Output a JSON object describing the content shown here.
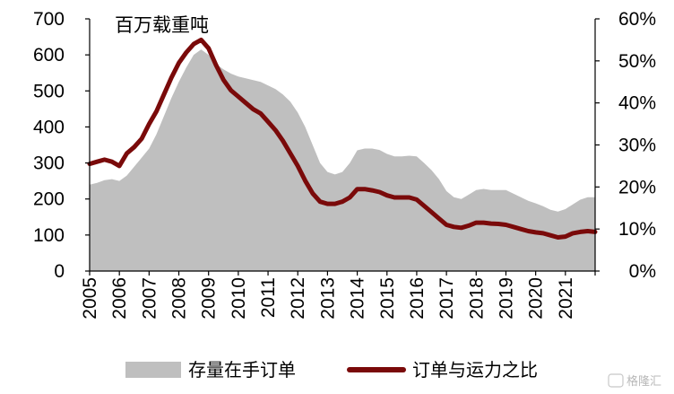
{
  "chart_data": {
    "type": "area",
    "unit_label": "百万载重吨",
    "x_labels": [
      "2005",
      "2006",
      "2007",
      "2008",
      "2009",
      "2010",
      "2011",
      "2012",
      "2013",
      "2014",
      "2015",
      "2016",
      "2017",
      "2018",
      "2019",
      "2020",
      "2021"
    ],
    "x_range": [
      2005.0,
      2022.0
    ],
    "y_left": {
      "range": [
        0,
        700
      ],
      "ticks": [
        "0",
        "100",
        "200",
        "300",
        "400",
        "500",
        "600",
        "700"
      ]
    },
    "y_right": {
      "range": [
        0,
        60
      ],
      "ticks": [
        "0%",
        "10%",
        "20%",
        "30%",
        "40%",
        "50%",
        "60%"
      ]
    },
    "series": [
      {
        "name": "存量在手订单",
        "kind": "area",
        "axis": "left",
        "color": "#bfbfbf",
        "points": [
          [
            2005.0,
            240
          ],
          [
            2005.25,
            245
          ],
          [
            2005.5,
            252
          ],
          [
            2005.75,
            255
          ],
          [
            2006.0,
            250
          ],
          [
            2006.25,
            265
          ],
          [
            2006.5,
            290
          ],
          [
            2006.75,
            315
          ],
          [
            2007.0,
            340
          ],
          [
            2007.25,
            380
          ],
          [
            2007.5,
            430
          ],
          [
            2007.75,
            480
          ],
          [
            2008.0,
            525
          ],
          [
            2008.25,
            565
          ],
          [
            2008.5,
            600
          ],
          [
            2008.75,
            615
          ],
          [
            2009.0,
            600
          ],
          [
            2009.25,
            575
          ],
          [
            2009.5,
            560
          ],
          [
            2009.75,
            548
          ],
          [
            2010.0,
            540
          ],
          [
            2010.25,
            535
          ],
          [
            2010.5,
            530
          ],
          [
            2010.75,
            525
          ],
          [
            2011.0,
            515
          ],
          [
            2011.25,
            505
          ],
          [
            2011.5,
            490
          ],
          [
            2011.75,
            470
          ],
          [
            2012.0,
            440
          ],
          [
            2012.25,
            400
          ],
          [
            2012.5,
            350
          ],
          [
            2012.75,
            300
          ],
          [
            2013.0,
            275
          ],
          [
            2013.25,
            268
          ],
          [
            2013.5,
            275
          ],
          [
            2013.75,
            300
          ],
          [
            2014.0,
            335
          ],
          [
            2014.25,
            340
          ],
          [
            2014.5,
            340
          ],
          [
            2014.75,
            336
          ],
          [
            2015.0,
            325
          ],
          [
            2015.25,
            318
          ],
          [
            2015.5,
            318
          ],
          [
            2015.75,
            320
          ],
          [
            2016.0,
            318
          ],
          [
            2016.25,
            300
          ],
          [
            2016.5,
            280
          ],
          [
            2016.75,
            255
          ],
          [
            2017.0,
            222
          ],
          [
            2017.25,
            205
          ],
          [
            2017.5,
            200
          ],
          [
            2017.75,
            212
          ],
          [
            2018.0,
            225
          ],
          [
            2018.25,
            228
          ],
          [
            2018.5,
            225
          ],
          [
            2018.75,
            225
          ],
          [
            2019.0,
            225
          ],
          [
            2019.25,
            215
          ],
          [
            2019.5,
            205
          ],
          [
            2019.75,
            195
          ],
          [
            2020.0,
            188
          ],
          [
            2020.25,
            180
          ],
          [
            2020.5,
            170
          ],
          [
            2020.75,
            165
          ],
          [
            2021.0,
            172
          ],
          [
            2021.25,
            185
          ],
          [
            2021.5,
            198
          ],
          [
            2021.75,
            205
          ],
          [
            2022.0,
            205
          ]
        ]
      },
      {
        "name": "订单与运力之比",
        "kind": "line",
        "axis": "right",
        "color": "#7a0a0a",
        "points": [
          [
            2005.0,
            25.5
          ],
          [
            2005.25,
            26
          ],
          [
            2005.5,
            26.5
          ],
          [
            2005.75,
            26
          ],
          [
            2006.0,
            25
          ],
          [
            2006.25,
            28
          ],
          [
            2006.5,
            29.5
          ],
          [
            2006.75,
            31.5
          ],
          [
            2007.0,
            35
          ],
          [
            2007.25,
            38
          ],
          [
            2007.5,
            42
          ],
          [
            2007.75,
            46
          ],
          [
            2008.0,
            49.5
          ],
          [
            2008.25,
            52
          ],
          [
            2008.5,
            54
          ],
          [
            2008.75,
            55
          ],
          [
            2009.0,
            53
          ],
          [
            2009.25,
            49
          ],
          [
            2009.5,
            45.5
          ],
          [
            2009.75,
            43
          ],
          [
            2010.0,
            41.5
          ],
          [
            2010.25,
            40
          ],
          [
            2010.5,
            38.5
          ],
          [
            2010.75,
            37.5
          ],
          [
            2011.0,
            35.5
          ],
          [
            2011.25,
            33.5
          ],
          [
            2011.5,
            31
          ],
          [
            2011.75,
            28
          ],
          [
            2012.0,
            25
          ],
          [
            2012.25,
            21.5
          ],
          [
            2012.5,
            18.5
          ],
          [
            2012.75,
            16.5
          ],
          [
            2013.0,
            16
          ],
          [
            2013.25,
            16
          ],
          [
            2013.5,
            16.5
          ],
          [
            2013.75,
            17.5
          ],
          [
            2014.0,
            19.5
          ],
          [
            2014.25,
            19.5
          ],
          [
            2014.5,
            19.2
          ],
          [
            2014.75,
            18.8
          ],
          [
            2015.0,
            18
          ],
          [
            2015.25,
            17.5
          ],
          [
            2015.5,
            17.5
          ],
          [
            2015.75,
            17.5
          ],
          [
            2016.0,
            17
          ],
          [
            2016.25,
            15.5
          ],
          [
            2016.5,
            14
          ],
          [
            2016.75,
            12.5
          ],
          [
            2017.0,
            11
          ],
          [
            2017.25,
            10.5
          ],
          [
            2017.5,
            10.3
          ],
          [
            2017.75,
            10.8
          ],
          [
            2018.0,
            11.5
          ],
          [
            2018.25,
            11.5
          ],
          [
            2018.5,
            11.3
          ],
          [
            2018.75,
            11.2
          ],
          [
            2019.0,
            11
          ],
          [
            2019.25,
            10.5
          ],
          [
            2019.5,
            10
          ],
          [
            2019.75,
            9.5
          ],
          [
            2020.0,
            9.2
          ],
          [
            2020.25,
            9
          ],
          [
            2020.5,
            8.5
          ],
          [
            2020.75,
            8
          ],
          [
            2021.0,
            8.2
          ],
          [
            2021.25,
            9
          ],
          [
            2021.5,
            9.3
          ],
          [
            2021.75,
            9.5
          ],
          [
            2022.0,
            9.3
          ]
        ]
      }
    ],
    "legend": {
      "placement": "bottom",
      "items": [
        "存量在手订单",
        "订单与运力之比"
      ]
    },
    "grid": false
  },
  "watermark": "格隆汇"
}
